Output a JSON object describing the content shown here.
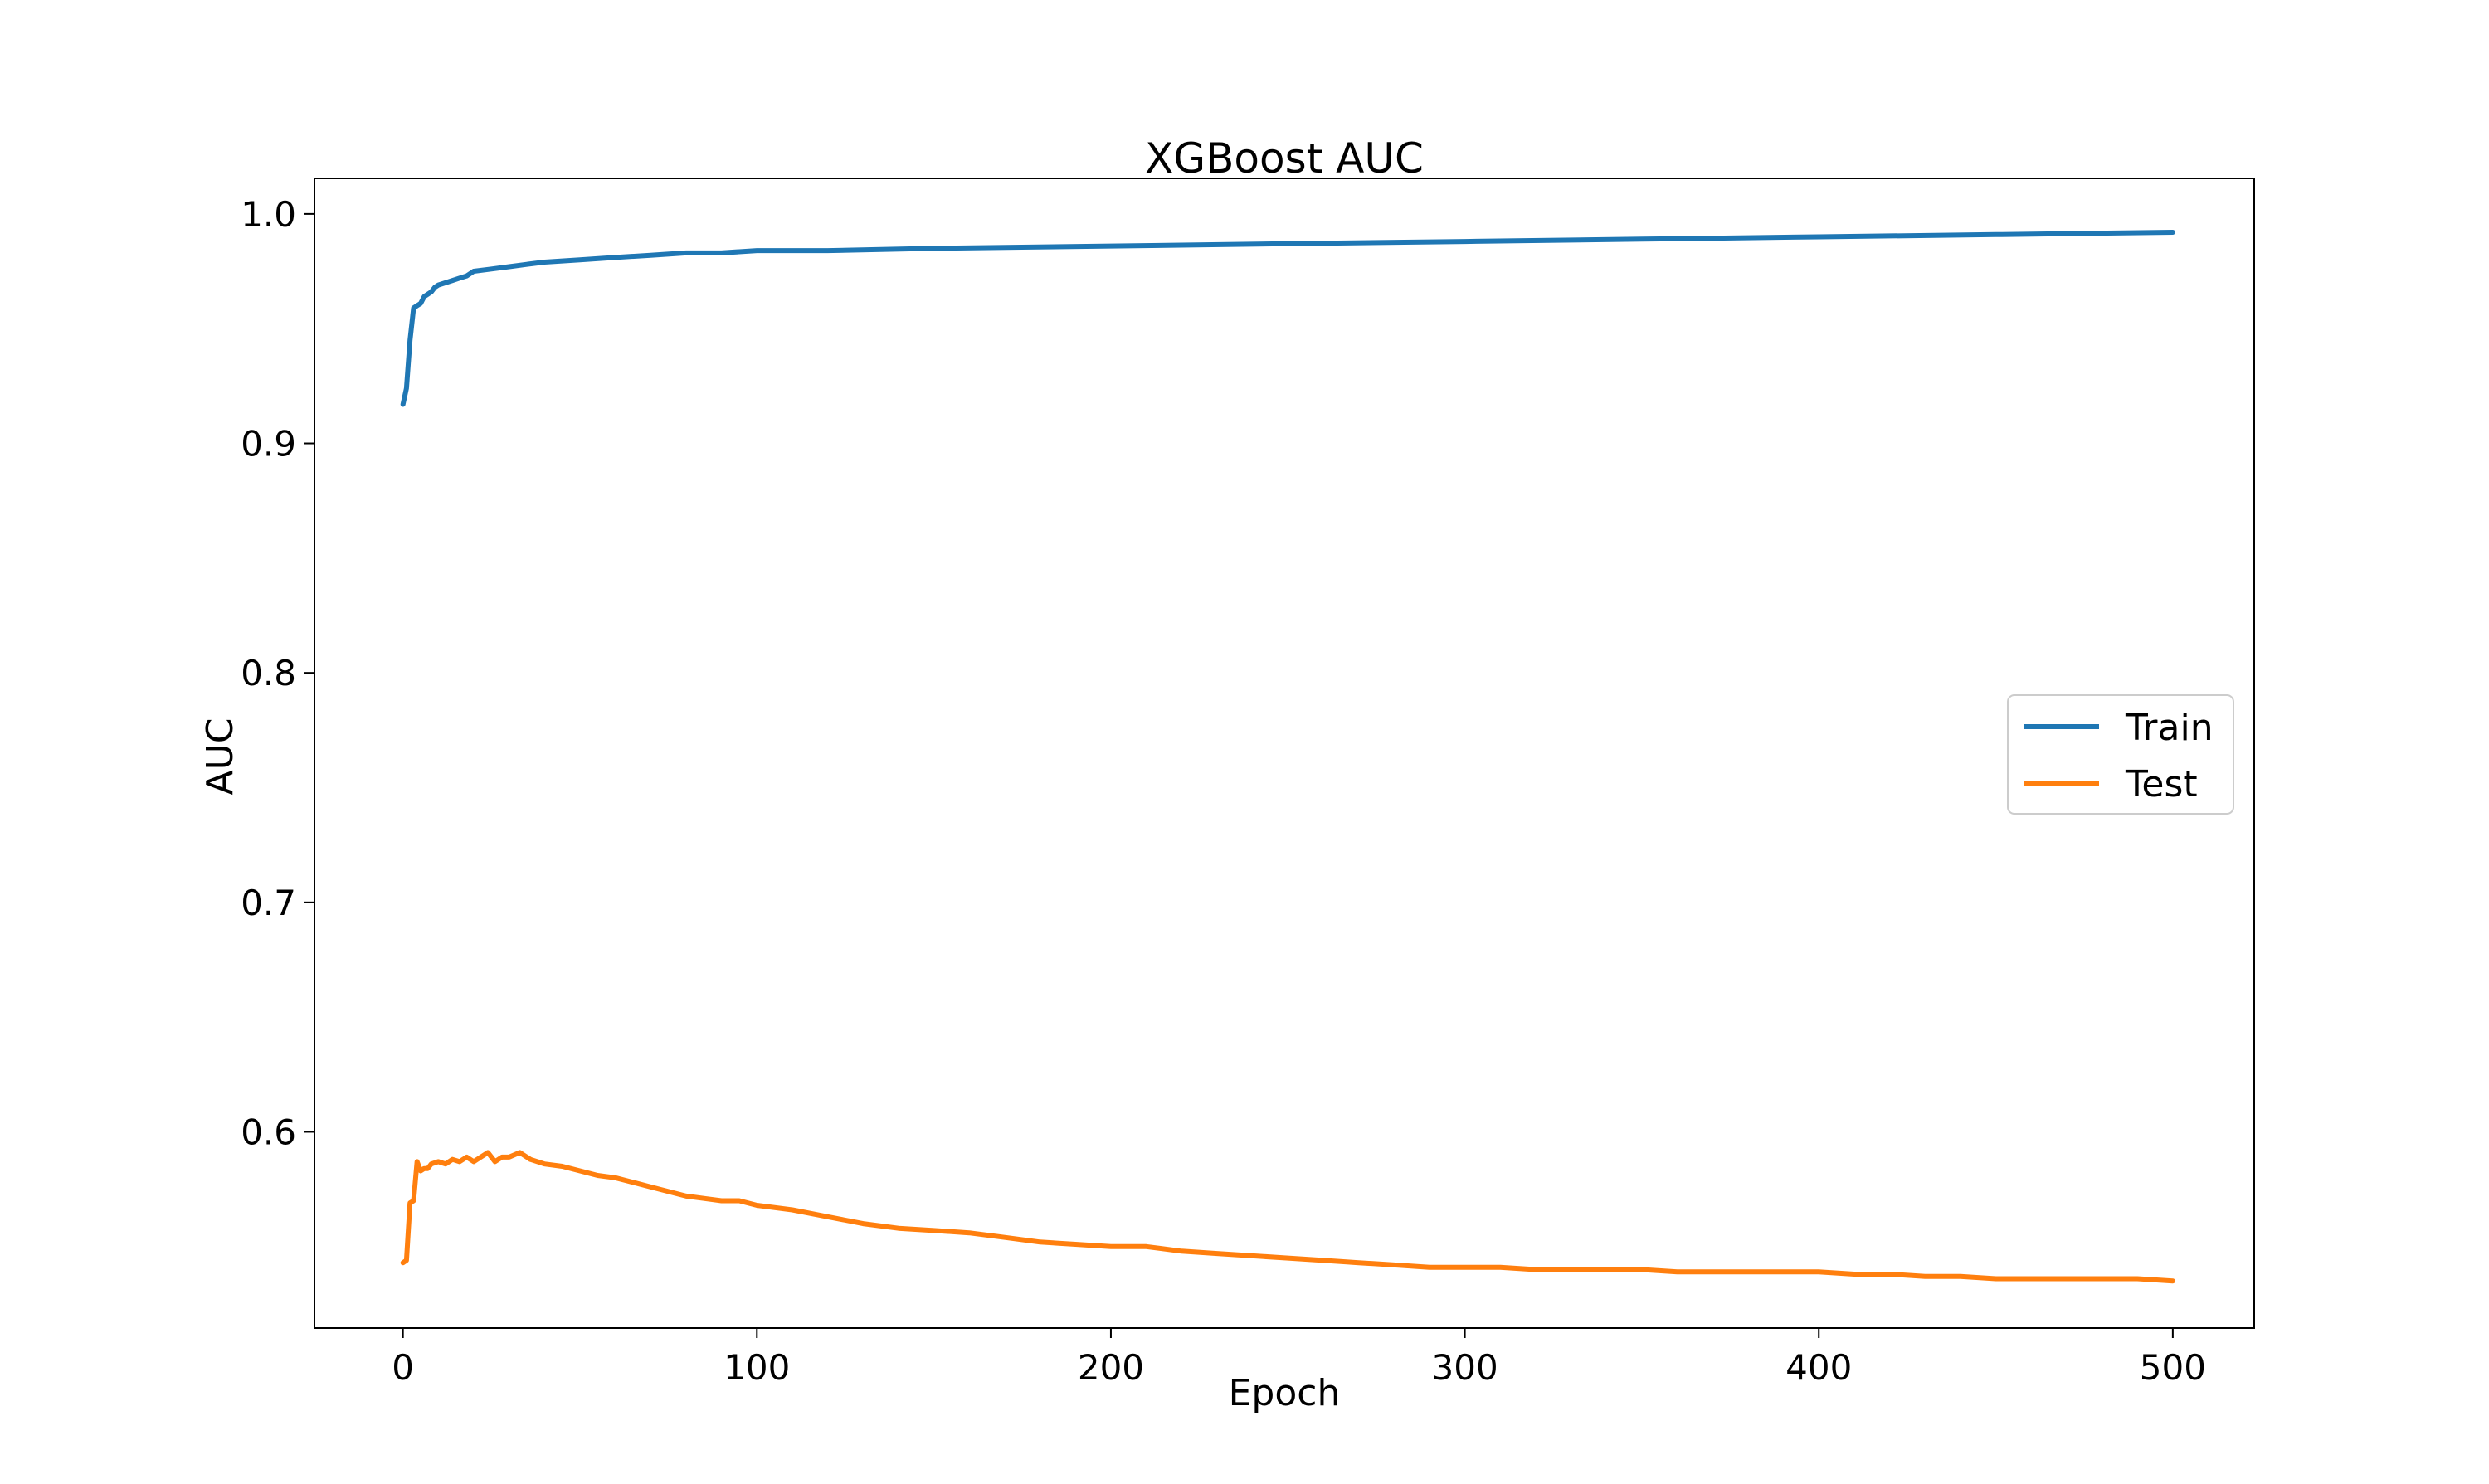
{
  "chart_data": {
    "type": "line",
    "title": "XGBoost AUC",
    "xlabel": "Epoch",
    "ylabel": "AUC",
    "xlim": [
      -25,
      523
    ],
    "ylim": [
      0.5145,
      1.0155
    ],
    "xticks": [
      0,
      100,
      200,
      300,
      400,
      500
    ],
    "xtick_labels": [
      "0",
      "100",
      "200",
      "300",
      "400",
      "500"
    ],
    "yticks": [
      0.6,
      0.7,
      0.8,
      0.9,
      1.0
    ],
    "ytick_labels": [
      "0.6",
      "0.7",
      "0.8",
      "0.9",
      "1.0"
    ],
    "grid": false,
    "legend_position": "center-right",
    "series": [
      {
        "name": "Train",
        "color": "#1f77b4",
        "x": [
          0,
          1,
          2,
          3,
          4,
          5,
          6,
          7,
          8,
          9,
          10,
          12,
          14,
          16,
          18,
          20,
          25,
          30,
          35,
          40,
          50,
          60,
          70,
          80,
          90,
          100,
          120,
          150,
          200,
          250,
          300,
          350,
          400,
          450,
          500
        ],
        "y": [
          0.917,
          0.924,
          0.945,
          0.959,
          0.96,
          0.961,
          0.964,
          0.965,
          0.966,
          0.968,
          0.969,
          0.97,
          0.971,
          0.972,
          0.973,
          0.975,
          0.976,
          0.977,
          0.978,
          0.979,
          0.98,
          0.981,
          0.982,
          0.983,
          0.983,
          0.984,
          0.984,
          0.985,
          0.986,
          0.987,
          0.988,
          0.989,
          0.99,
          0.991,
          0.992
        ]
      },
      {
        "name": "Test",
        "color": "#ff7f0e",
        "x": [
          0,
          1,
          2,
          3,
          4,
          5,
          6,
          7,
          8,
          10,
          12,
          14,
          16,
          18,
          20,
          22,
          24,
          26,
          28,
          30,
          33,
          36,
          40,
          45,
          50,
          55,
          60,
          65,
          70,
          75,
          80,
          85,
          90,
          95,
          100,
          110,
          120,
          130,
          140,
          150,
          160,
          170,
          180,
          190,
          200,
          210,
          220,
          230,
          240,
          250,
          260,
          270,
          280,
          290,
          300,
          310,
          320,
          330,
          340,
          350,
          360,
          370,
          380,
          390,
          400,
          410,
          420,
          430,
          440,
          450,
          460,
          470,
          480,
          490,
          500
        ],
        "y": [
          0.543,
          0.544,
          0.569,
          0.57,
          0.587,
          0.583,
          0.584,
          0.584,
          0.586,
          0.587,
          0.586,
          0.588,
          0.587,
          0.589,
          0.587,
          0.589,
          0.591,
          0.587,
          0.589,
          0.589,
          0.591,
          0.588,
          0.586,
          0.585,
          0.583,
          0.581,
          0.58,
          0.578,
          0.576,
          0.574,
          0.572,
          0.571,
          0.57,
          0.57,
          0.568,
          0.566,
          0.563,
          0.56,
          0.558,
          0.557,
          0.556,
          0.554,
          0.552,
          0.551,
          0.55,
          0.55,
          0.548,
          0.547,
          0.546,
          0.545,
          0.544,
          0.543,
          0.542,
          0.541,
          0.541,
          0.541,
          0.54,
          0.54,
          0.54,
          0.54,
          0.539,
          0.539,
          0.539,
          0.539,
          0.539,
          0.538,
          0.538,
          0.537,
          0.537,
          0.536,
          0.536,
          0.536,
          0.536,
          0.536,
          0.535
        ]
      }
    ]
  }
}
